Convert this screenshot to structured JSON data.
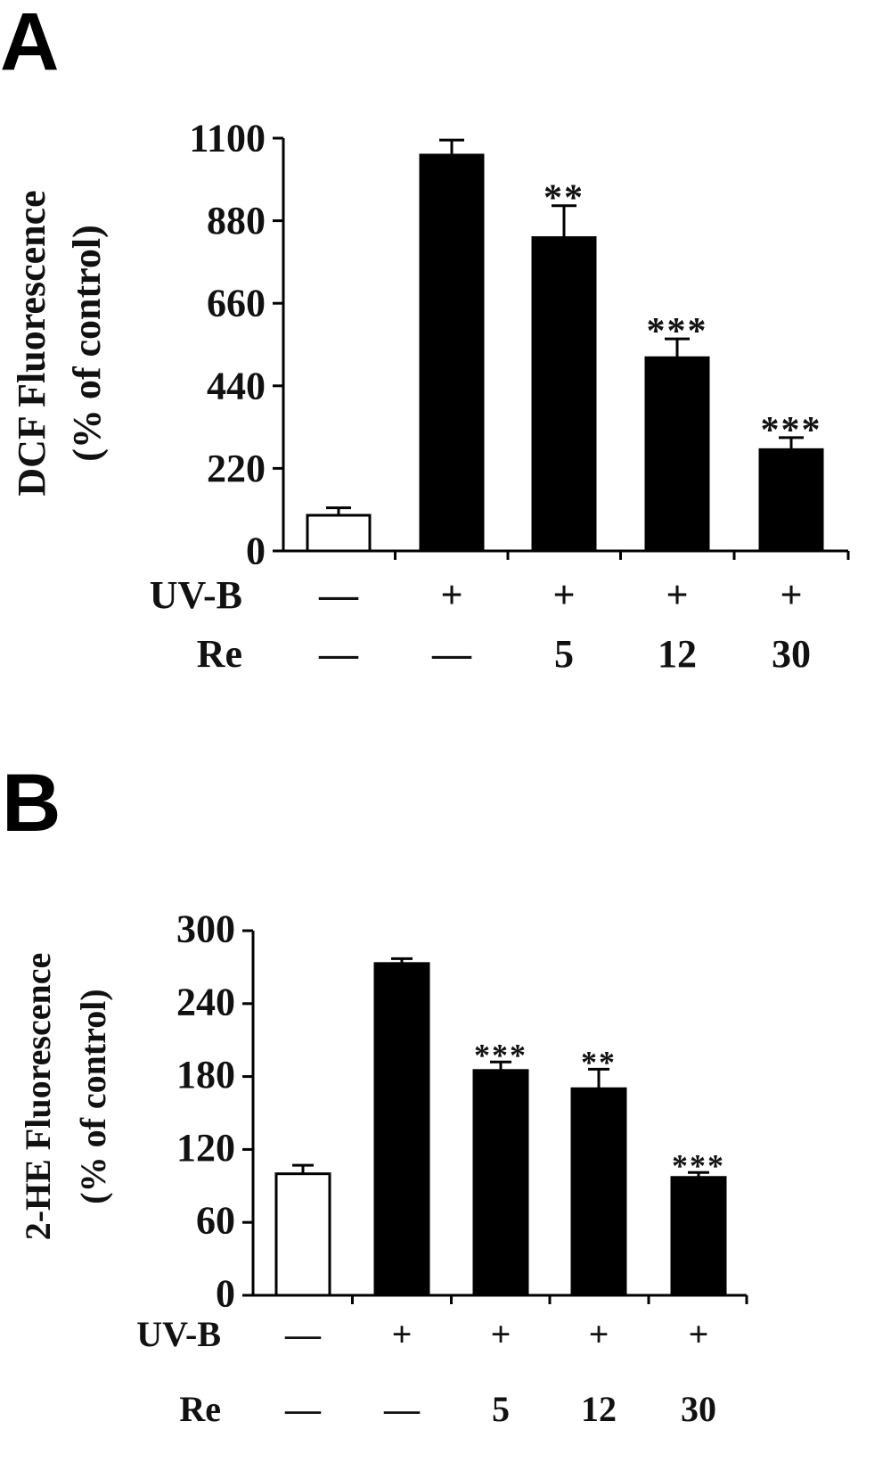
{
  "panels": [
    {
      "letter": "A"
    },
    {
      "letter": "B"
    }
  ],
  "chart_data": [
    {
      "type": "bar",
      "panel": "A",
      "ylabel": [
        "DCF Fluorescence",
        "(% of control)"
      ],
      "ylim": [
        0,
        1100
      ],
      "yticks": [
        "0",
        "220",
        "440",
        "660",
        "880",
        "1100"
      ],
      "treatment_rows": [
        {
          "label": "UV-B",
          "values": [
            "—",
            "+",
            "+",
            "+",
            "+"
          ]
        },
        {
          "label": "Re",
          "values": [
            "—",
            "—",
            "5",
            "12",
            "30"
          ]
        }
      ],
      "values": [
        95,
        1055,
        835,
        515,
        270
      ],
      "errors": [
        20,
        40,
        85,
        50,
        32
      ],
      "colors": [
        "#ffffff",
        "#000000",
        "#000000",
        "#000000",
        "#000000"
      ],
      "significance": [
        "",
        "",
        "**",
        "***",
        "***"
      ]
    },
    {
      "type": "bar",
      "panel": "B",
      "ylabel": [
        "2-HE Fluorescence",
        "(% of control)"
      ],
      "ylim": [
        0,
        300
      ],
      "yticks": [
        "0",
        "60",
        "120",
        "180",
        "240",
        "300"
      ],
      "treatment_rows": [
        {
          "label": "UV-B",
          "values": [
            "—",
            "+",
            "+",
            "+",
            "+"
          ]
        },
        {
          "label": "Re",
          "values": [
            "—",
            "—",
            "5",
            "12",
            "30"
          ]
        }
      ],
      "values": [
        100,
        273,
        185,
        170,
        97
      ],
      "errors": [
        7,
        4,
        7,
        16,
        4
      ],
      "colors": [
        "#ffffff",
        "#000000",
        "#000000",
        "#000000",
        "#000000"
      ],
      "significance": [
        "",
        "",
        "***",
        "**",
        "***"
      ]
    }
  ]
}
